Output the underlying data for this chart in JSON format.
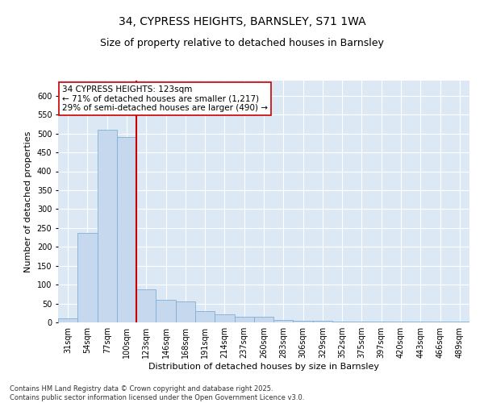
{
  "title": "34, CYPRESS HEIGHTS, BARNSLEY, S71 1WA",
  "subtitle": "Size of property relative to detached houses in Barnsley",
  "xlabel": "Distribution of detached houses by size in Barnsley",
  "ylabel": "Number of detached properties",
  "footer": "Contains HM Land Registry data © Crown copyright and database right 2025.\nContains public sector information licensed under the Open Government Licence v3.0.",
  "annotation_text": "34 CYPRESS HEIGHTS: 123sqm\n← 71% of detached houses are smaller (1,217)\n29% of semi-detached houses are larger (490) →",
  "bar_color": "#c5d8ee",
  "bar_edge_color": "#7fafd4",
  "background_color": "#dce9f5",
  "red_line_color": "#cc0000",
  "annotation_box_color": "#ffffff",
  "annotation_box_edge": "#cc0000",
  "ylim": [
    0,
    640
  ],
  "yticks": [
    0,
    50,
    100,
    150,
    200,
    250,
    300,
    350,
    400,
    450,
    500,
    550,
    600
  ],
  "categories": [
    "31sqm",
    "54sqm",
    "77sqm",
    "100sqm",
    "123sqm",
    "146sqm",
    "168sqm",
    "191sqm",
    "214sqm",
    "237sqm",
    "260sqm",
    "283sqm",
    "306sqm",
    "329sqm",
    "352sqm",
    "375sqm",
    "397sqm",
    "420sqm",
    "443sqm",
    "466sqm",
    "489sqm"
  ],
  "values": [
    10,
    237,
    510,
    490,
    88,
    60,
    55,
    30,
    22,
    15,
    15,
    6,
    5,
    4,
    3,
    3,
    2,
    3,
    2,
    2,
    2
  ],
  "red_line_x": 3.5,
  "title_fontsize": 10,
  "subtitle_fontsize": 9,
  "tick_fontsize": 7,
  "axis_label_fontsize": 8,
  "footer_fontsize": 6,
  "annotation_fontsize": 7.5
}
